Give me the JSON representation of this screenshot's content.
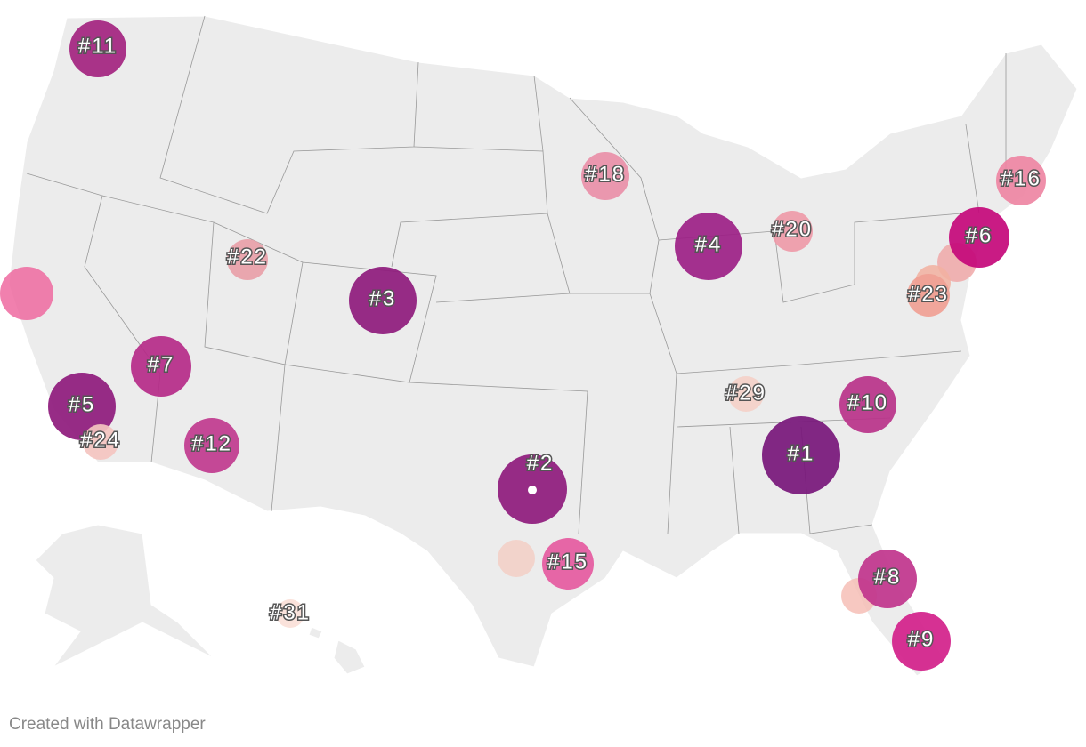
{
  "markers": [
    {
      "label": "#11",
      "color": "#a3237f"
    },
    {
      "label": "#22",
      "color": "#e8a0a8"
    },
    {
      "label": "#3",
      "color": "#8e1a7c"
    },
    {
      "label": "#7",
      "color": "#b52a88"
    },
    {
      "label": "#5",
      "color": "#8e1a7c"
    },
    {
      "label": "#24",
      "color": "#f4c4c0"
    },
    {
      "label": "#12",
      "color": "#c0398e"
    },
    {
      "label": "#18",
      "color": "#e98fa8"
    },
    {
      "label": "#4",
      "color": "#9c1f86"
    },
    {
      "label": "#20",
      "color": "#ee9aa8"
    },
    {
      "label": "#6",
      "color": "#c4087a"
    },
    {
      "label": "#16",
      "color": "#ee86a3"
    },
    {
      "label": "#23",
      "color": "#f0a094"
    },
    {
      "label": "#29",
      "color": "#f4d0c8"
    },
    {
      "label": "#10",
      "color": "#b83289"
    },
    {
      "label": "#1",
      "color": "#77167a"
    },
    {
      "label": "#2",
      "color": "#8e1a7c"
    },
    {
      "label": "#15",
      "color": "#e55aa0"
    },
    {
      "label": "#8",
      "color": "#c0348c"
    },
    {
      "label": "#9",
      "color": "#d3208a"
    },
    {
      "label": "#31",
      "color": "#fae0d8"
    }
  ],
  "footer": {
    "credit": "Created with Datawrapper"
  }
}
